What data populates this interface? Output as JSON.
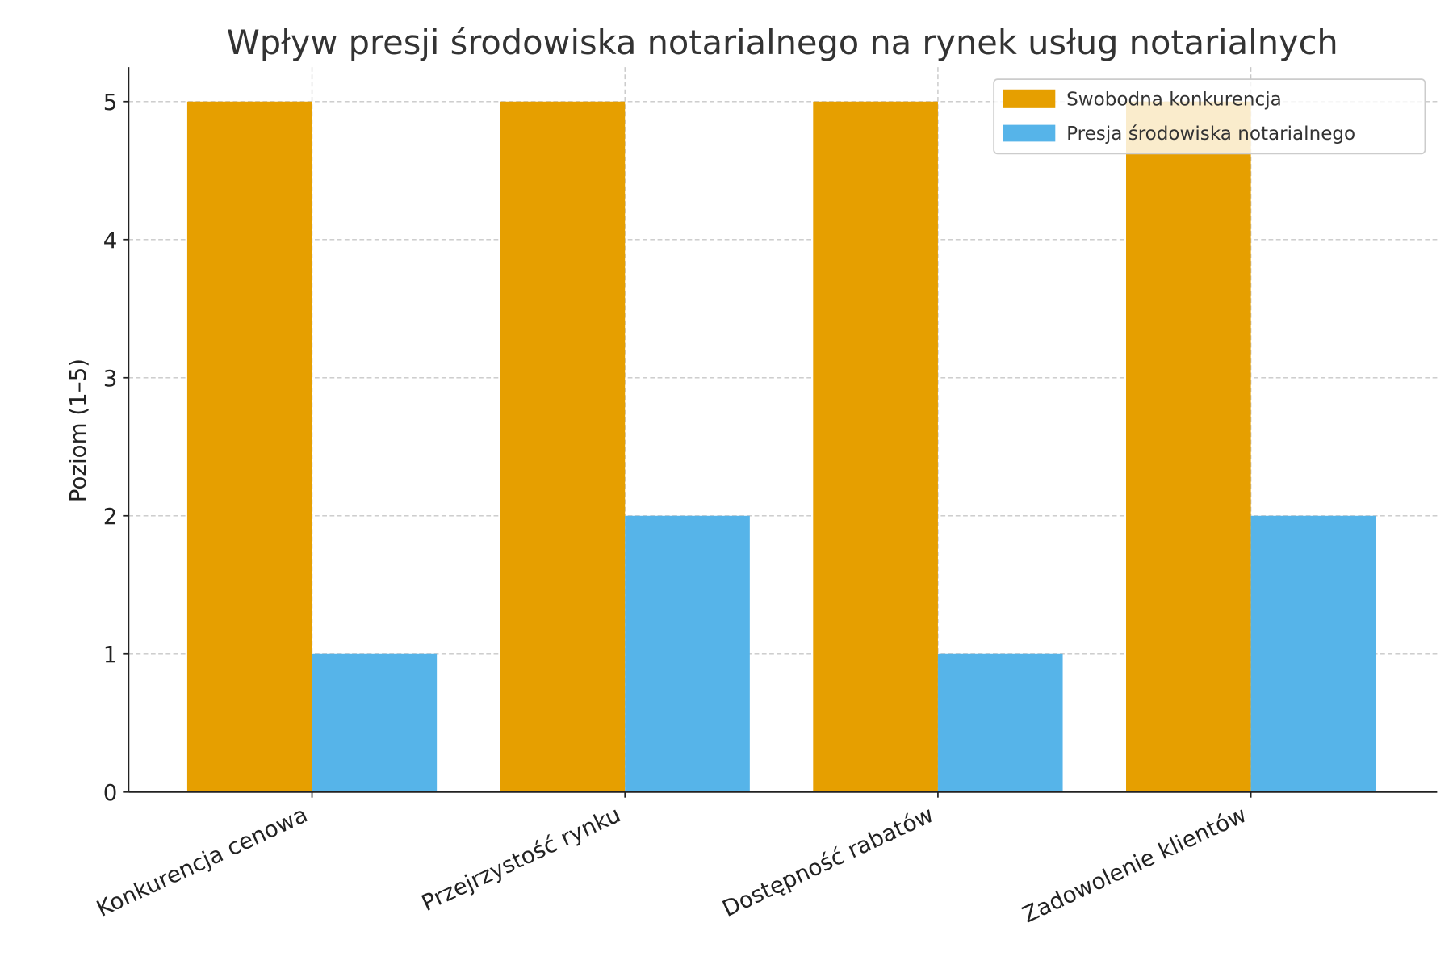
{
  "chart_data": {
    "type": "bar",
    "title": "Wpływ presji środowiska notarialnego na rynek usług notarialnych",
    "xlabel": "",
    "ylabel": "Poziom (1–5)",
    "categories": [
      "Konkurencja cenowa",
      "Przejrzystość rynku",
      "Dostępność rabatów",
      "Zadowolenie klientów"
    ],
    "series": [
      {
        "name": "Swobodna konkurencja",
        "values": [
          5,
          5,
          5,
          5
        ],
        "color": "#E69F00"
      },
      {
        "name": "Presja środowiska notarialnego",
        "values": [
          1,
          2,
          1,
          2
        ],
        "color": "#56B4E9"
      }
    ],
    "ylim": [
      0,
      5.25
    ],
    "yticks": [
      "0",
      "1",
      "2",
      "3",
      "4",
      "5"
    ],
    "grid": true,
    "legend": "top-right"
  }
}
